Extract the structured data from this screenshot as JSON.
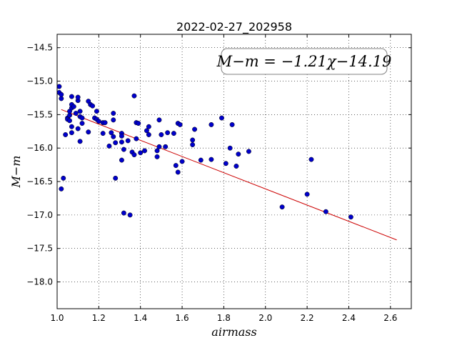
{
  "chart_data": {
    "type": "scatter",
    "title": "2022-02-27_202958",
    "xlabel": "airmass",
    "ylabel": "M−m",
    "xlim": [
      1.0,
      2.7
    ],
    "ylim": [
      -18.4,
      -14.3
    ],
    "y_inverted": true,
    "grid": true,
    "xticks": [
      "1.0",
      "1.2",
      "1.4",
      "1.6",
      "1.8",
      "2.0",
      "2.2",
      "2.4",
      "2.6"
    ],
    "yticks": [
      "−14.5",
      "−15.0",
      "−15.5",
      "−16.0",
      "−16.5",
      "−17.0",
      "−17.5",
      "−18.0"
    ],
    "annotation": "M−m = −1.21χ−14.19",
    "fit": {
      "slope": -1.21,
      "intercept": -14.19,
      "x_range": [
        1.02,
        2.63
      ],
      "color": "#cc0000"
    },
    "point_color": "#0000cc",
    "series": [
      {
        "points": [
          [
            1.01,
            -15.08
          ],
          [
            1.01,
            -15.17
          ],
          [
            1.02,
            -15.26
          ],
          [
            1.02,
            -15.2
          ],
          [
            1.03,
            -16.45
          ],
          [
            1.02,
            -16.61
          ],
          [
            1.04,
            -15.8
          ],
          [
            1.05,
            -15.55
          ],
          [
            1.05,
            -15.57
          ],
          [
            1.06,
            -15.51
          ],
          [
            1.06,
            -15.59
          ],
          [
            1.06,
            -15.45
          ],
          [
            1.07,
            -15.4
          ],
          [
            1.07,
            -15.35
          ],
          [
            1.07,
            -15.23
          ],
          [
            1.07,
            -15.68
          ],
          [
            1.07,
            -15.77
          ],
          [
            1.08,
            -15.38
          ],
          [
            1.09,
            -15.48
          ],
          [
            1.1,
            -15.29
          ],
          [
            1.1,
            -15.24
          ],
          [
            1.1,
            -15.71
          ],
          [
            1.11,
            -15.45
          ],
          [
            1.11,
            -15.53
          ],
          [
            1.11,
            -15.9
          ],
          [
            1.12,
            -15.55
          ],
          [
            1.12,
            -15.63
          ],
          [
            1.15,
            -15.3
          ],
          [
            1.15,
            -15.76
          ],
          [
            1.16,
            -15.35
          ],
          [
            1.17,
            -15.37
          ],
          [
            1.18,
            -15.55
          ],
          [
            1.19,
            -15.57
          ],
          [
            1.19,
            -15.45
          ],
          [
            1.2,
            -15.6
          ],
          [
            1.22,
            -15.62
          ],
          [
            1.22,
            -15.78
          ],
          [
            1.23,
            -15.62
          ],
          [
            1.25,
            -15.97
          ],
          [
            1.26,
            -15.77
          ],
          [
            1.27,
            -15.83
          ],
          [
            1.27,
            -15.48
          ],
          [
            1.27,
            -15.58
          ],
          [
            1.28,
            -15.92
          ],
          [
            1.28,
            -16.45
          ],
          [
            1.31,
            -15.78
          ],
          [
            1.31,
            -15.82
          ],
          [
            1.31,
            -16.18
          ],
          [
            1.31,
            -15.91
          ],
          [
            1.32,
            -16.02
          ],
          [
            1.32,
            -16.97
          ],
          [
            1.34,
            -15.89
          ],
          [
            1.35,
            -17.0
          ],
          [
            1.36,
            -16.06
          ],
          [
            1.37,
            -15.22
          ],
          [
            1.37,
            -16.1
          ],
          [
            1.38,
            -15.62
          ],
          [
            1.38,
            -15.86
          ],
          [
            1.39,
            -15.63
          ],
          [
            1.4,
            -16.07
          ],
          [
            1.42,
            -16.04
          ],
          [
            1.43,
            -15.74
          ],
          [
            1.44,
            -15.8
          ],
          [
            1.44,
            -15.68
          ],
          [
            1.48,
            -16.04
          ],
          [
            1.48,
            -16.13
          ],
          [
            1.49,
            -15.58
          ],
          [
            1.49,
            -15.98
          ],
          [
            1.5,
            -15.8
          ],
          [
            1.52,
            -15.98
          ],
          [
            1.53,
            -15.77
          ],
          [
            1.56,
            -15.78
          ],
          [
            1.57,
            -16.26
          ],
          [
            1.58,
            -16.36
          ],
          [
            1.58,
            -15.63
          ],
          [
            1.59,
            -15.65
          ],
          [
            1.6,
            -16.2
          ],
          [
            1.65,
            -15.88
          ],
          [
            1.65,
            -15.95
          ],
          [
            1.66,
            -15.72
          ],
          [
            1.69,
            -16.18
          ],
          [
            1.74,
            -15.65
          ],
          [
            1.74,
            -16.17
          ],
          [
            1.79,
            -15.55
          ],
          [
            1.81,
            -16.23
          ],
          [
            1.83,
            -16.0
          ],
          [
            1.84,
            -15.65
          ],
          [
            1.86,
            -16.27
          ],
          [
            1.87,
            -16.09
          ],
          [
            1.92,
            -16.05
          ],
          [
            2.08,
            -16.88
          ],
          [
            2.2,
            -16.69
          ],
          [
            2.22,
            -16.17
          ],
          [
            2.29,
            -16.95
          ],
          [
            2.41,
            -17.03
          ]
        ]
      }
    ]
  }
}
